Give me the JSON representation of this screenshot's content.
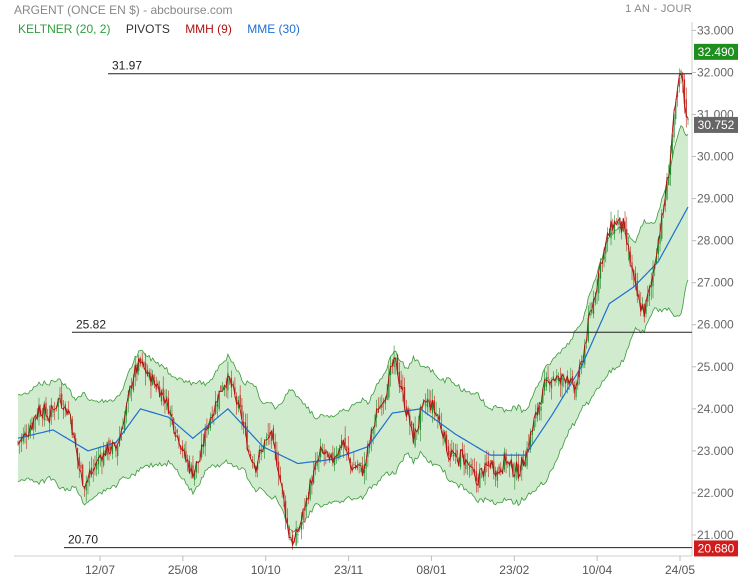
{
  "header": {
    "title": "ARGENT (ONCE EN $) - abcbourse.com",
    "period": "1 AN - JOUR"
  },
  "legend": [
    {
      "label": "KELTNER (20, 2)",
      "color": "#2e9e3e"
    },
    {
      "label": "PIVOTS",
      "color": "#333333"
    },
    {
      "label": "MMH (9)",
      "color": "#b01010"
    },
    {
      "label": "MME (30)",
      "color": "#1e6fd0"
    }
  ],
  "chart_data": {
    "type": "candlestick",
    "x_tick_labels": [
      "12/07",
      "25/08",
      "10/10",
      "23/11",
      "08/01",
      "23/02",
      "10/04",
      "24/05"
    ],
    "y_tick_labels": [
      "21.000",
      "22.000",
      "23.000",
      "24.000",
      "25.000",
      "26.000",
      "27.000",
      "28.000",
      "29.000",
      "30.000",
      "31.000",
      "32.000",
      "33.000"
    ],
    "ylim": [
      20.5,
      33.2
    ],
    "pivots": [
      {
        "label": "31.97",
        "value": 31.97
      },
      {
        "label": "25.82",
        "value": 25.82
      },
      {
        "label": "20.70",
        "value": 20.7
      }
    ],
    "price_badges": [
      {
        "label": "32.490",
        "value": 32.49,
        "color": "#1e8f1e"
      },
      {
        "label": "30.752",
        "value": 30.752,
        "color": "#666666"
      },
      {
        "label": "20.680",
        "value": 20.68,
        "color": "#d01c1c"
      }
    ],
    "close_path": [
      [
        0,
        23.2
      ],
      [
        6,
        23.5
      ],
      [
        12,
        24.0
      ],
      [
        18,
        23.8
      ],
      [
        24,
        24.3
      ],
      [
        30,
        23.8
      ],
      [
        34,
        22.8
      ],
      [
        38,
        22.2
      ],
      [
        42,
        22.5
      ],
      [
        46,
        22.8
      ],
      [
        52,
        23.1
      ],
      [
        56,
        23.0
      ],
      [
        62,
        24.0
      ],
      [
        66,
        24.8
      ],
      [
        70,
        25.1
      ],
      [
        74,
        24.8
      ],
      [
        80,
        24.5
      ],
      [
        84,
        24.3
      ],
      [
        88,
        23.8
      ],
      [
        92,
        23.3
      ],
      [
        96,
        22.8
      ],
      [
        100,
        22.5
      ],
      [
        104,
        22.8
      ],
      [
        108,
        23.6
      ],
      [
        112,
        24.0
      ],
      [
        116,
        24.5
      ],
      [
        120,
        24.7
      ],
      [
        124,
        24.3
      ],
      [
        128,
        23.8
      ],
      [
        132,
        23.0
      ],
      [
        136,
        22.7
      ],
      [
        140,
        23.1
      ],
      [
        144,
        23.4
      ],
      [
        148,
        22.8
      ],
      [
        152,
        21.8
      ],
      [
        155,
        21.0
      ],
      [
        158,
        20.8
      ],
      [
        162,
        21.3
      ],
      [
        166,
        22.0
      ],
      [
        170,
        22.6
      ],
      [
        174,
        23.0
      ],
      [
        178,
        22.7
      ],
      [
        182,
        23.0
      ],
      [
        186,
        23.2
      ],
      [
        190,
        22.7
      ],
      [
        194,
        22.6
      ],
      [
        198,
        22.6
      ],
      [
        202,
        23.4
      ],
      [
        206,
        24.0
      ],
      [
        210,
        24.4
      ],
      [
        214,
        25.0
      ],
      [
        216,
        25.1
      ],
      [
        218,
        24.7
      ],
      [
        222,
        24.0
      ],
      [
        226,
        23.3
      ],
      [
        230,
        23.8
      ],
      [
        234,
        24.2
      ],
      [
        238,
        24.0
      ],
      [
        242,
        23.6
      ],
      [
        246,
        23.0
      ],
      [
        250,
        22.8
      ],
      [
        254,
        22.9
      ],
      [
        258,
        22.6
      ],
      [
        262,
        22.3
      ],
      [
        266,
        22.5
      ],
      [
        270,
        22.7
      ],
      [
        274,
        22.5
      ],
      [
        278,
        22.8
      ],
      [
        282,
        22.6
      ],
      [
        286,
        22.5
      ],
      [
        290,
        22.9
      ],
      [
        294,
        23.5
      ],
      [
        298,
        24.1
      ],
      [
        302,
        24.6
      ],
      [
        306,
        24.8
      ],
      [
        310,
        24.6
      ],
      [
        314,
        24.8
      ],
      [
        318,
        24.4
      ],
      [
        322,
        25.0
      ],
      [
        326,
        26.0
      ],
      [
        330,
        26.8
      ],
      [
        334,
        27.6
      ],
      [
        338,
        28.2
      ],
      [
        342,
        28.5
      ],
      [
        346,
        28.3
      ],
      [
        350,
        27.5
      ],
      [
        352,
        27.0
      ],
      [
        355,
        26.5
      ],
      [
        358,
        26.3
      ],
      [
        362,
        27.0
      ],
      [
        365,
        27.8
      ],
      [
        368,
        28.5
      ],
      [
        371,
        29.3
      ],
      [
        374,
        30.5
      ],
      [
        377,
        31.5
      ],
      [
        379,
        32.0
      ],
      [
        381,
        31.3
      ],
      [
        383,
        30.8
      ]
    ],
    "mme_path": [
      [
        0,
        23.3
      ],
      [
        20,
        23.5
      ],
      [
        40,
        23.0
      ],
      [
        56,
        23.2
      ],
      [
        70,
        24.0
      ],
      [
        86,
        23.8
      ],
      [
        100,
        23.3
      ],
      [
        120,
        24.0
      ],
      [
        140,
        23.1
      ],
      [
        160,
        22.7
      ],
      [
        180,
        22.8
      ],
      [
        200,
        23.1
      ],
      [
        214,
        23.9
      ],
      [
        230,
        24.0
      ],
      [
        250,
        23.4
      ],
      [
        270,
        22.9
      ],
      [
        290,
        22.9
      ],
      [
        306,
        23.9
      ],
      [
        322,
        25.0
      ],
      [
        338,
        26.5
      ],
      [
        352,
        26.9
      ],
      [
        366,
        27.5
      ],
      [
        383,
        28.8
      ]
    ],
    "keltner_width": 1.0,
    "mmh_offset": 0.15
  }
}
